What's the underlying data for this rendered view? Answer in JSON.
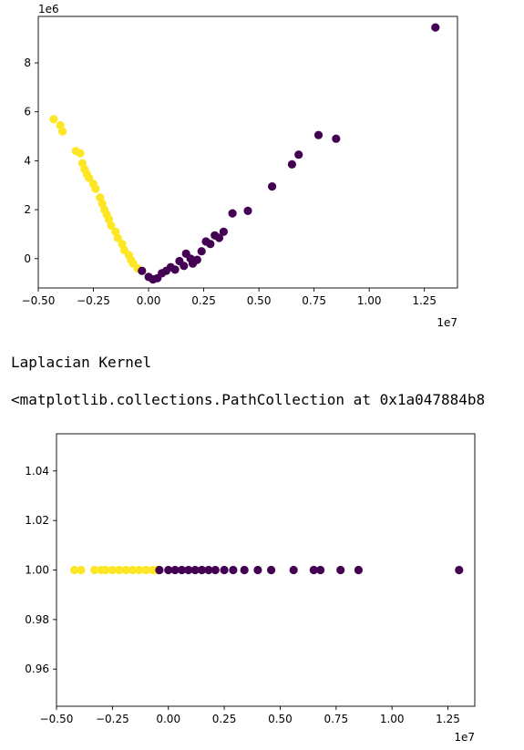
{
  "output": {
    "kernel_label": "Laplacian Kernel",
    "repr_text": "<matplotlib.collections.PathCollection at 0x1a047884b8"
  },
  "colors": {
    "class_0": "#440154",
    "class_1": "#fde725"
  },
  "chart_data": [
    {
      "type": "scatter",
      "title": "",
      "xlabel": "",
      "ylabel": "",
      "x_offset_text": "1e7",
      "y_offset_text": "1e6",
      "xlim": [
        -0.5,
        1.4
      ],
      "ylim": [
        -1.2,
        9.9
      ],
      "x_ticks": [
        -0.5,
        -0.25,
        0.0,
        0.25,
        0.5,
        0.75,
        1.0,
        1.25
      ],
      "x_tick_labels": [
        "−0.50",
        "−0.25",
        "0.00",
        "0.25",
        "0.50",
        "0.75",
        "1.00",
        "1.25"
      ],
      "y_ticks": [
        0,
        2,
        4,
        6,
        8
      ],
      "y_tick_labels": [
        "0",
        "2",
        "4",
        "6",
        "8"
      ],
      "grid": false,
      "series": [
        {
          "color": "#fde725",
          "points": [
            [
              -0.43,
              5.7
            ],
            [
              -0.4,
              5.45
            ],
            [
              -0.39,
              5.2
            ],
            [
              -0.33,
              4.4
            ],
            [
              -0.31,
              4.3
            ],
            [
              -0.3,
              3.9
            ],
            [
              -0.29,
              3.65
            ],
            [
              -0.28,
              3.45
            ],
            [
              -0.27,
              3.3
            ],
            [
              -0.25,
              3.05
            ],
            [
              -0.24,
              2.85
            ],
            [
              -0.22,
              2.5
            ],
            [
              -0.21,
              2.25
            ],
            [
              -0.2,
              2.0
            ],
            [
              -0.19,
              1.8
            ],
            [
              -0.18,
              1.6
            ],
            [
              -0.17,
              1.35
            ],
            [
              -0.15,
              1.1
            ],
            [
              -0.14,
              0.85
            ],
            [
              -0.12,
              0.6
            ],
            [
              -0.11,
              0.35
            ],
            [
              -0.09,
              0.15
            ],
            [
              -0.08,
              -0.05
            ],
            [
              -0.07,
              -0.2
            ],
            [
              -0.05,
              -0.4
            ]
          ]
        },
        {
          "color": "#440154",
          "points": [
            [
              -0.03,
              -0.5
            ],
            [
              0.0,
              -0.75
            ],
            [
              0.02,
              -0.85
            ],
            [
              0.04,
              -0.8
            ],
            [
              0.06,
              -0.6
            ],
            [
              0.08,
              -0.5
            ],
            [
              0.1,
              -0.35
            ],
            [
              0.12,
              -0.45
            ],
            [
              0.14,
              -0.1
            ],
            [
              0.16,
              -0.3
            ],
            [
              0.17,
              0.2
            ],
            [
              0.19,
              0.0
            ],
            [
              0.2,
              -0.2
            ],
            [
              0.22,
              -0.05
            ],
            [
              0.24,
              0.3
            ],
            [
              0.26,
              0.7
            ],
            [
              0.28,
              0.6
            ],
            [
              0.3,
              0.95
            ],
            [
              0.32,
              0.85
            ],
            [
              0.34,
              1.1
            ],
            [
              0.38,
              1.85
            ],
            [
              0.45,
              1.95
            ],
            [
              0.56,
              2.95
            ],
            [
              0.65,
              3.85
            ],
            [
              0.68,
              4.25
            ],
            [
              0.77,
              5.05
            ],
            [
              0.85,
              4.9
            ],
            [
              1.3,
              9.45
            ]
          ]
        }
      ]
    },
    {
      "type": "scatter",
      "title": "",
      "xlabel": "",
      "ylabel": "",
      "x_offset_text": "1e7",
      "xlim": [
        -0.5,
        1.37
      ],
      "ylim": [
        0.945,
        1.055
      ],
      "x_ticks": [
        -0.5,
        -0.25,
        0.0,
        0.25,
        0.5,
        0.75,
        1.0,
        1.25
      ],
      "x_tick_labels": [
        "−0.50",
        "−0.25",
        "0.00",
        "0.25",
        "0.50",
        "0.75",
        "1.00",
        "1.25"
      ],
      "y_ticks": [
        0.96,
        0.98,
        1.0,
        1.02,
        1.04
      ],
      "y_tick_labels": [
        "0.96",
        "0.98",
        "1.00",
        "1.02",
        "1.04"
      ],
      "grid": false,
      "series": [
        {
          "color": "#fde725",
          "points": [
            [
              -0.42,
              1.0
            ],
            [
              -0.39,
              1.0
            ],
            [
              -0.33,
              1.0
            ],
            [
              -0.3,
              1.0
            ],
            [
              -0.28,
              1.0
            ],
            [
              -0.25,
              1.0
            ],
            [
              -0.22,
              1.0
            ],
            [
              -0.19,
              1.0
            ],
            [
              -0.16,
              1.0
            ],
            [
              -0.13,
              1.0
            ],
            [
              -0.1,
              1.0
            ],
            [
              -0.07,
              1.0
            ],
            [
              -0.05,
              1.0
            ]
          ]
        },
        {
          "color": "#440154",
          "points": [
            [
              -0.04,
              1.0
            ],
            [
              0.0,
              1.0
            ],
            [
              0.03,
              1.0
            ],
            [
              0.06,
              1.0
            ],
            [
              0.09,
              1.0
            ],
            [
              0.12,
              1.0
            ],
            [
              0.15,
              1.0
            ],
            [
              0.18,
              1.0
            ],
            [
              0.21,
              1.0
            ],
            [
              0.25,
              1.0
            ],
            [
              0.29,
              1.0
            ],
            [
              0.34,
              1.0
            ],
            [
              0.4,
              1.0
            ],
            [
              0.46,
              1.0
            ],
            [
              0.56,
              1.0
            ],
            [
              0.65,
              1.0
            ],
            [
              0.68,
              1.0
            ],
            [
              0.77,
              1.0
            ],
            [
              0.85,
              1.0
            ],
            [
              1.3,
              1.0
            ]
          ]
        }
      ]
    }
  ]
}
